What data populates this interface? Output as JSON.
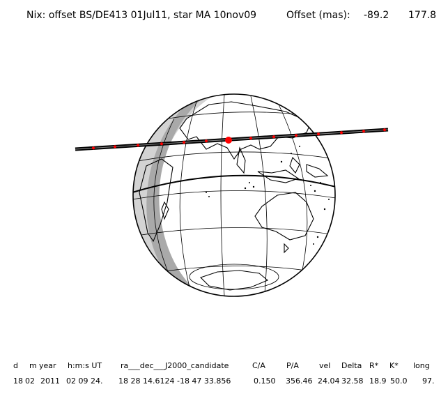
{
  "title": {
    "text": "Nix: offset BS/DE413 01Jul11, star MA 10nov09",
    "offset_label": "Offset (mas):",
    "offset_ra": "-89.2",
    "offset_dec": "177.8"
  },
  "table": {
    "headers": [
      "d",
      "m",
      "year",
      "h:m:s UT",
      "ra___dec___J2000_candidate",
      "C/A",
      "P/A",
      "vel",
      "Delta",
      "R*",
      "K*",
      "long"
    ],
    "values": [
      "18",
      "02",
      "2011",
      "02 09 24.",
      "18 28 14.6124 -18 47  33.856",
      "0.150",
      "356.46",
      "24.04",
      "32.58",
      "18.9",
      "50.0",
      "97."
    ]
  },
  "colors": {
    "globe_outline": "#000000",
    "night_shade": "#d3d3d3",
    "twilight_shade": "#a9a9a9",
    "shadow_track": "#000000",
    "event_points": "#ff0000"
  }
}
